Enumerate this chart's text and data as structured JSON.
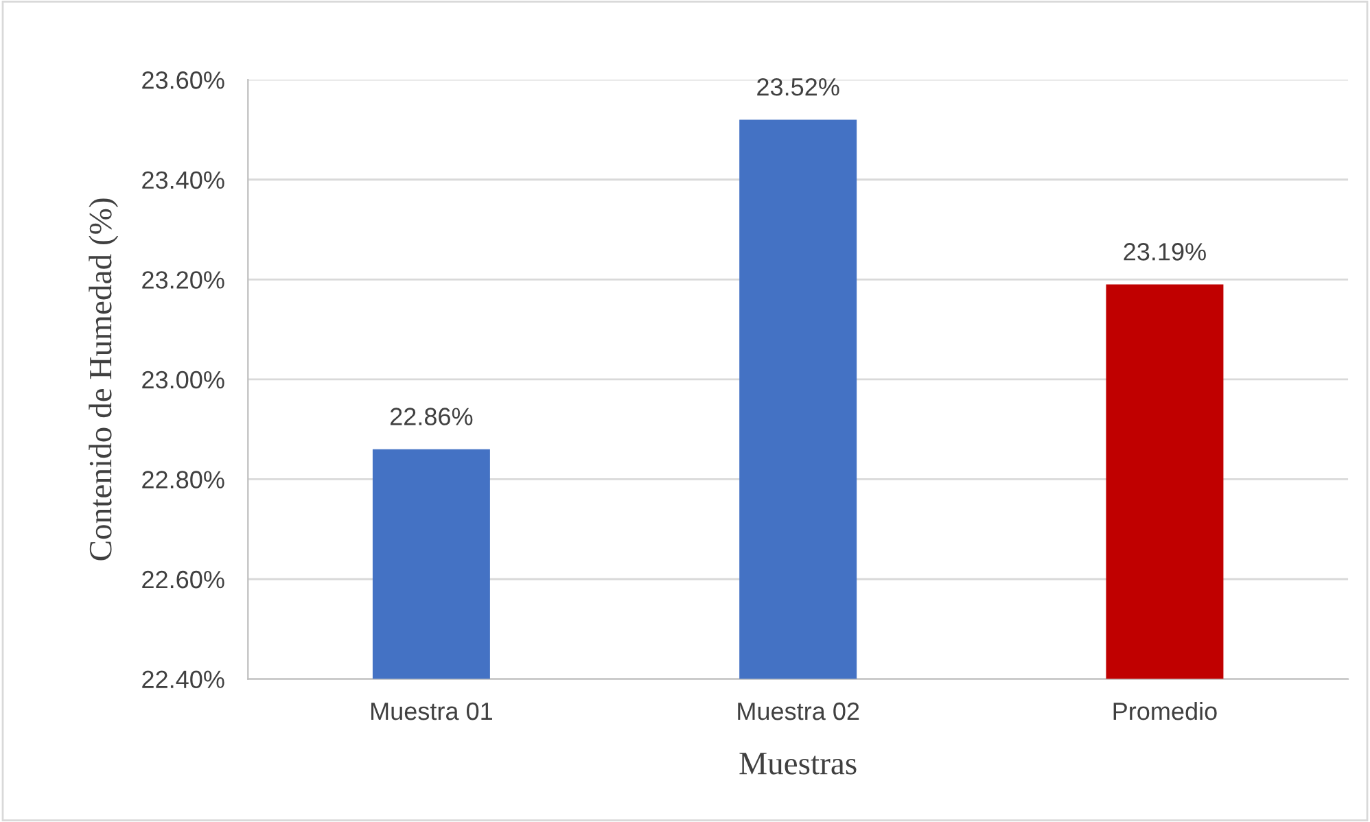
{
  "chart_data": {
    "type": "bar",
    "xlabel": "Muestras",
    "ylabel": "Contenido de Humedad (%)",
    "categories": [
      "Muestra 01",
      "Muestra 02",
      "Promedio"
    ],
    "values": [
      22.86,
      23.52,
      23.19
    ],
    "colors": [
      "#4472c4",
      "#4472c4",
      "#c00000"
    ],
    "value_labels": [
      "22.86%",
      "23.52%",
      "23.19%"
    ],
    "ylim": [
      22.4,
      23.6
    ],
    "yticks": [
      {
        "value": 22.4,
        "label": "22.40%"
      },
      {
        "value": 22.6,
        "label": "22.60%"
      },
      {
        "value": 22.8,
        "label": "22.80%"
      },
      {
        "value": 23.0,
        "label": "23.00%"
      },
      {
        "value": 23.2,
        "label": "23.20%"
      },
      {
        "value": 23.4,
        "label": "23.40%"
      },
      {
        "value": 23.6,
        "label": "23.60%"
      }
    ],
    "grid": "y",
    "legend": false
  }
}
